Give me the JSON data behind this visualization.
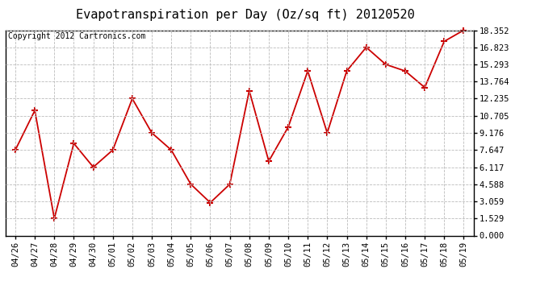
{
  "title": "Evapotranspiration per Day (Oz/sq ft) 20120520",
  "copyright": "Copyright 2012 Cartronics.com",
  "x_labels": [
    "04/26",
    "04/27",
    "04/28",
    "04/29",
    "04/30",
    "05/01",
    "05/02",
    "05/03",
    "05/04",
    "05/05",
    "05/06",
    "05/07",
    "05/08",
    "05/09",
    "05/10",
    "05/11",
    "05/12",
    "05/13",
    "05/14",
    "05/15",
    "05/16",
    "05/17",
    "05/18",
    "05/19"
  ],
  "y_values": [
    7.647,
    11.176,
    1.529,
    8.235,
    6.117,
    7.647,
    12.235,
    9.176,
    7.647,
    4.588,
    2.941,
    4.588,
    12.941,
    6.647,
    9.706,
    14.706,
    9.176,
    14.706,
    16.823,
    15.293,
    14.706,
    13.235,
    17.353,
    18.352
  ],
  "y_min": 0.0,
  "y_max": 18.352,
  "y_ticks": [
    0.0,
    1.529,
    3.059,
    4.588,
    6.117,
    7.647,
    9.176,
    10.705,
    12.235,
    13.764,
    15.293,
    16.823,
    18.352
  ],
  "line_color": "#cc0000",
  "marker": "+",
  "marker_size": 6,
  "marker_color": "#cc0000",
  "bg_color": "#ffffff",
  "grid_color": "#bbbbbb",
  "grid_style": "--",
  "title_fontsize": 11,
  "copyright_fontsize": 7,
  "tick_fontsize": 7.5,
  "line_width": 1.3
}
